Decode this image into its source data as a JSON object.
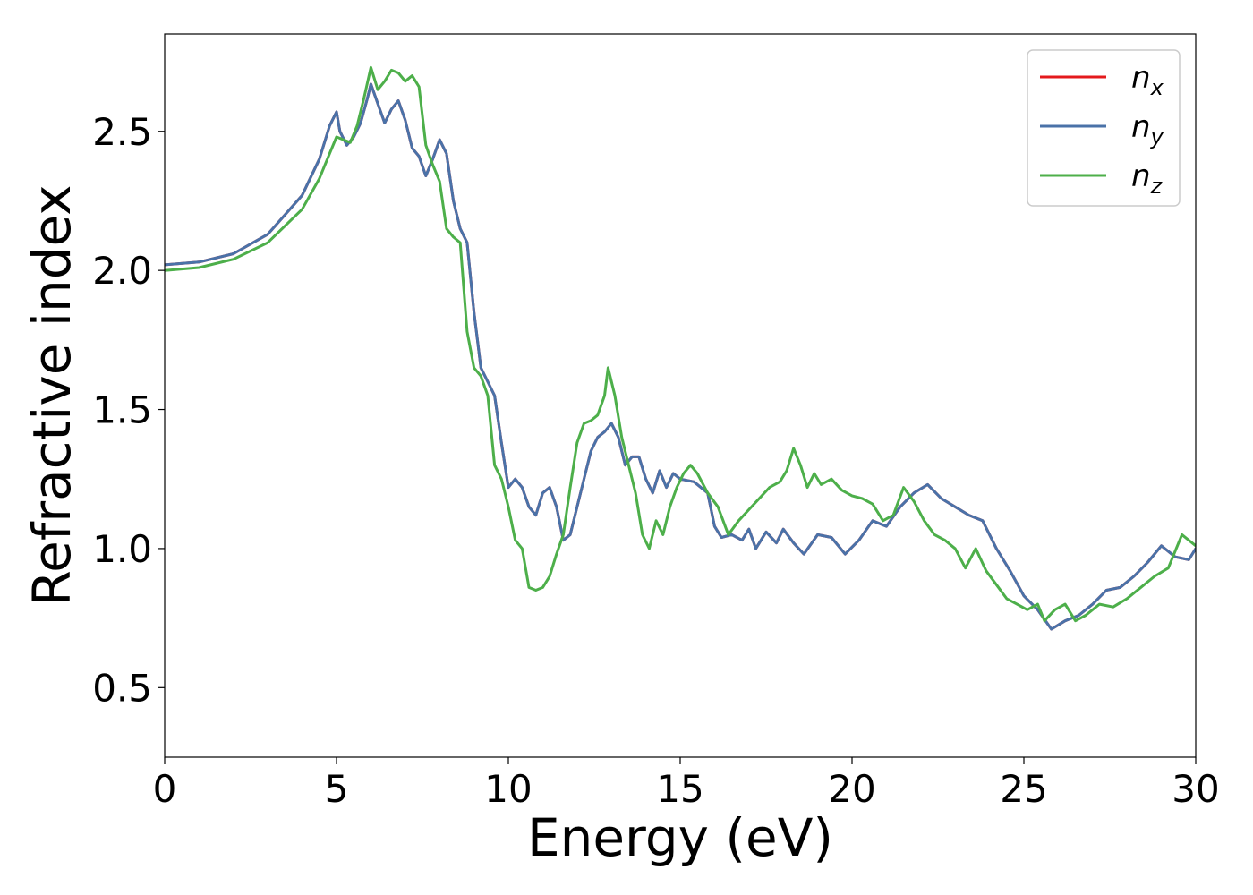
{
  "chart_data": {
    "type": "line",
    "title": "",
    "xlabel": "Energy (eV)",
    "ylabel": "Refractive index",
    "xlim": [
      0,
      30
    ],
    "ylim": [
      0.25,
      2.85
    ],
    "x_ticks": [
      "0",
      "5",
      "10",
      "15",
      "20",
      "25",
      "30"
    ],
    "y_ticks": [
      "0.5",
      "1.0",
      "1.5",
      "2.0",
      "2.5"
    ],
    "grid": false,
    "legend_position": "top-right",
    "series": [
      {
        "name": "n_x",
        "legend_main": "n",
        "legend_sub": "x",
        "color": "#e41a1c",
        "points": [
          [
            0,
            2.02
          ],
          [
            1,
            2.03
          ],
          [
            2,
            2.06
          ],
          [
            3,
            2.13
          ],
          [
            4,
            2.27
          ],
          [
            4.5,
            2.4
          ],
          [
            4.8,
            2.52
          ],
          [
            5.0,
            2.57
          ],
          [
            5.1,
            2.5
          ],
          [
            5.3,
            2.45
          ],
          [
            5.5,
            2.48
          ],
          [
            5.7,
            2.53
          ],
          [
            5.9,
            2.62
          ],
          [
            6.0,
            2.67
          ],
          [
            6.2,
            2.6
          ],
          [
            6.4,
            2.53
          ],
          [
            6.6,
            2.58
          ],
          [
            6.8,
            2.61
          ],
          [
            7.0,
            2.54
          ],
          [
            7.2,
            2.44
          ],
          [
            7.4,
            2.41
          ],
          [
            7.6,
            2.34
          ],
          [
            7.8,
            2.4
          ],
          [
            8.0,
            2.47
          ],
          [
            8.2,
            2.42
          ],
          [
            8.4,
            2.25
          ],
          [
            8.6,
            2.15
          ],
          [
            8.8,
            2.1
          ],
          [
            9.0,
            1.85
          ],
          [
            9.2,
            1.65
          ],
          [
            9.4,
            1.6
          ],
          [
            9.6,
            1.55
          ],
          [
            9.8,
            1.38
          ],
          [
            10.0,
            1.22
          ],
          [
            10.2,
            1.25
          ],
          [
            10.4,
            1.22
          ],
          [
            10.6,
            1.15
          ],
          [
            10.8,
            1.12
          ],
          [
            11.0,
            1.2
          ],
          [
            11.2,
            1.22
          ],
          [
            11.4,
            1.15
          ],
          [
            11.6,
            1.03
          ],
          [
            11.8,
            1.05
          ],
          [
            12.0,
            1.15
          ],
          [
            12.2,
            1.25
          ],
          [
            12.4,
            1.35
          ],
          [
            12.6,
            1.4
          ],
          [
            12.8,
            1.42
          ],
          [
            13.0,
            1.45
          ],
          [
            13.2,
            1.4
          ],
          [
            13.4,
            1.3
          ],
          [
            13.6,
            1.33
          ],
          [
            13.8,
            1.33
          ],
          [
            14.0,
            1.25
          ],
          [
            14.2,
            1.2
          ],
          [
            14.4,
            1.28
          ],
          [
            14.6,
            1.22
          ],
          [
            14.8,
            1.27
          ],
          [
            15.0,
            1.25
          ],
          [
            15.4,
            1.24
          ],
          [
            15.8,
            1.2
          ],
          [
            16.0,
            1.08
          ],
          [
            16.2,
            1.04
          ],
          [
            16.5,
            1.05
          ],
          [
            16.8,
            1.03
          ],
          [
            17.0,
            1.07
          ],
          [
            17.2,
            1.0
          ],
          [
            17.5,
            1.06
          ],
          [
            17.8,
            1.02
          ],
          [
            18.0,
            1.07
          ],
          [
            18.3,
            1.02
          ],
          [
            18.6,
            0.98
          ],
          [
            19.0,
            1.05
          ],
          [
            19.4,
            1.04
          ],
          [
            19.8,
            0.98
          ],
          [
            20.2,
            1.03
          ],
          [
            20.6,
            1.1
          ],
          [
            21.0,
            1.08
          ],
          [
            21.4,
            1.15
          ],
          [
            21.8,
            1.2
          ],
          [
            22.2,
            1.23
          ],
          [
            22.6,
            1.18
          ],
          [
            23.0,
            1.15
          ],
          [
            23.4,
            1.12
          ],
          [
            23.8,
            1.1
          ],
          [
            24.2,
            1.0
          ],
          [
            24.6,
            0.92
          ],
          [
            25.0,
            0.83
          ],
          [
            25.4,
            0.78
          ],
          [
            25.8,
            0.71
          ],
          [
            26.2,
            0.74
          ],
          [
            26.6,
            0.76
          ],
          [
            27.0,
            0.8
          ],
          [
            27.4,
            0.85
          ],
          [
            27.8,
            0.86
          ],
          [
            28.2,
            0.9
          ],
          [
            28.6,
            0.95
          ],
          [
            29.0,
            1.01
          ],
          [
            29.4,
            0.97
          ],
          [
            29.8,
            0.96
          ],
          [
            30.0,
            1.0
          ]
        ]
      },
      {
        "name": "n_y",
        "legend_main": "n",
        "legend_sub": "y",
        "color": "#4a72a8",
        "points": [
          [
            0,
            2.02
          ],
          [
            1,
            2.03
          ],
          [
            2,
            2.06
          ],
          [
            3,
            2.13
          ],
          [
            4,
            2.27
          ],
          [
            4.5,
            2.4
          ],
          [
            4.8,
            2.52
          ],
          [
            5.0,
            2.57
          ],
          [
            5.1,
            2.5
          ],
          [
            5.3,
            2.45
          ],
          [
            5.5,
            2.48
          ],
          [
            5.7,
            2.53
          ],
          [
            5.9,
            2.62
          ],
          [
            6.0,
            2.67
          ],
          [
            6.2,
            2.6
          ],
          [
            6.4,
            2.53
          ],
          [
            6.6,
            2.58
          ],
          [
            6.8,
            2.61
          ],
          [
            7.0,
            2.54
          ],
          [
            7.2,
            2.44
          ],
          [
            7.4,
            2.41
          ],
          [
            7.6,
            2.34
          ],
          [
            7.8,
            2.4
          ],
          [
            8.0,
            2.47
          ],
          [
            8.2,
            2.42
          ],
          [
            8.4,
            2.25
          ],
          [
            8.6,
            2.15
          ],
          [
            8.8,
            2.1
          ],
          [
            9.0,
            1.85
          ],
          [
            9.2,
            1.65
          ],
          [
            9.4,
            1.6
          ],
          [
            9.6,
            1.55
          ],
          [
            9.8,
            1.38
          ],
          [
            10.0,
            1.22
          ],
          [
            10.2,
            1.25
          ],
          [
            10.4,
            1.22
          ],
          [
            10.6,
            1.15
          ],
          [
            10.8,
            1.12
          ],
          [
            11.0,
            1.2
          ],
          [
            11.2,
            1.22
          ],
          [
            11.4,
            1.15
          ],
          [
            11.6,
            1.03
          ],
          [
            11.8,
            1.05
          ],
          [
            12.0,
            1.15
          ],
          [
            12.2,
            1.25
          ],
          [
            12.4,
            1.35
          ],
          [
            12.6,
            1.4
          ],
          [
            12.8,
            1.42
          ],
          [
            13.0,
            1.45
          ],
          [
            13.2,
            1.4
          ],
          [
            13.4,
            1.3
          ],
          [
            13.6,
            1.33
          ],
          [
            13.8,
            1.33
          ],
          [
            14.0,
            1.25
          ],
          [
            14.2,
            1.2
          ],
          [
            14.4,
            1.28
          ],
          [
            14.6,
            1.22
          ],
          [
            14.8,
            1.27
          ],
          [
            15.0,
            1.25
          ],
          [
            15.4,
            1.24
          ],
          [
            15.8,
            1.2
          ],
          [
            16.0,
            1.08
          ],
          [
            16.2,
            1.04
          ],
          [
            16.5,
            1.05
          ],
          [
            16.8,
            1.03
          ],
          [
            17.0,
            1.07
          ],
          [
            17.2,
            1.0
          ],
          [
            17.5,
            1.06
          ],
          [
            17.8,
            1.02
          ],
          [
            18.0,
            1.07
          ],
          [
            18.3,
            1.02
          ],
          [
            18.6,
            0.98
          ],
          [
            19.0,
            1.05
          ],
          [
            19.4,
            1.04
          ],
          [
            19.8,
            0.98
          ],
          [
            20.2,
            1.03
          ],
          [
            20.6,
            1.1
          ],
          [
            21.0,
            1.08
          ],
          [
            21.4,
            1.15
          ],
          [
            21.8,
            1.2
          ],
          [
            22.2,
            1.23
          ],
          [
            22.6,
            1.18
          ],
          [
            23.0,
            1.15
          ],
          [
            23.4,
            1.12
          ],
          [
            23.8,
            1.1
          ],
          [
            24.2,
            1.0
          ],
          [
            24.6,
            0.92
          ],
          [
            25.0,
            0.83
          ],
          [
            25.4,
            0.78
          ],
          [
            25.8,
            0.71
          ],
          [
            26.2,
            0.74
          ],
          [
            26.6,
            0.76
          ],
          [
            27.0,
            0.8
          ],
          [
            27.4,
            0.85
          ],
          [
            27.8,
            0.86
          ],
          [
            28.2,
            0.9
          ],
          [
            28.6,
            0.95
          ],
          [
            29.0,
            1.01
          ],
          [
            29.4,
            0.97
          ],
          [
            29.8,
            0.96
          ],
          [
            30.0,
            1.0
          ]
        ]
      },
      {
        "name": "n_z",
        "legend_main": "n",
        "legend_sub": "z",
        "color": "#4daf4a",
        "points": [
          [
            0,
            2.0
          ],
          [
            1,
            2.01
          ],
          [
            2,
            2.04
          ],
          [
            3,
            2.1
          ],
          [
            4,
            2.22
          ],
          [
            4.5,
            2.33
          ],
          [
            4.8,
            2.42
          ],
          [
            5.0,
            2.48
          ],
          [
            5.2,
            2.47
          ],
          [
            5.4,
            2.46
          ],
          [
            5.6,
            2.52
          ],
          [
            5.8,
            2.62
          ],
          [
            6.0,
            2.73
          ],
          [
            6.2,
            2.65
          ],
          [
            6.4,
            2.68
          ],
          [
            6.6,
            2.72
          ],
          [
            6.8,
            2.71
          ],
          [
            7.0,
            2.68
          ],
          [
            7.2,
            2.7
          ],
          [
            7.4,
            2.66
          ],
          [
            7.6,
            2.45
          ],
          [
            7.8,
            2.38
          ],
          [
            8.0,
            2.32
          ],
          [
            8.2,
            2.15
          ],
          [
            8.4,
            2.12
          ],
          [
            8.6,
            2.1
          ],
          [
            8.8,
            1.78
          ],
          [
            9.0,
            1.65
          ],
          [
            9.2,
            1.62
          ],
          [
            9.4,
            1.55
          ],
          [
            9.6,
            1.3
          ],
          [
            9.8,
            1.25
          ],
          [
            10.0,
            1.15
          ],
          [
            10.2,
            1.03
          ],
          [
            10.4,
            1.0
          ],
          [
            10.6,
            0.86
          ],
          [
            10.8,
            0.85
          ],
          [
            11.0,
            0.86
          ],
          [
            11.2,
            0.9
          ],
          [
            11.4,
            0.98
          ],
          [
            11.6,
            1.05
          ],
          [
            11.8,
            1.22
          ],
          [
            12.0,
            1.38
          ],
          [
            12.2,
            1.45
          ],
          [
            12.4,
            1.46
          ],
          [
            12.6,
            1.48
          ],
          [
            12.8,
            1.55
          ],
          [
            12.9,
            1.65
          ],
          [
            13.1,
            1.55
          ],
          [
            13.3,
            1.4
          ],
          [
            13.5,
            1.3
          ],
          [
            13.7,
            1.2
          ],
          [
            13.9,
            1.05
          ],
          [
            14.1,
            1.0
          ],
          [
            14.3,
            1.1
          ],
          [
            14.5,
            1.05
          ],
          [
            14.7,
            1.15
          ],
          [
            14.9,
            1.22
          ],
          [
            15.1,
            1.27
          ],
          [
            15.3,
            1.3
          ],
          [
            15.5,
            1.27
          ],
          [
            15.8,
            1.2
          ],
          [
            16.1,
            1.15
          ],
          [
            16.4,
            1.05
          ],
          [
            16.7,
            1.1
          ],
          [
            17.0,
            1.14
          ],
          [
            17.3,
            1.18
          ],
          [
            17.6,
            1.22
          ],
          [
            17.9,
            1.24
          ],
          [
            18.1,
            1.28
          ],
          [
            18.3,
            1.36
          ],
          [
            18.5,
            1.3
          ],
          [
            18.7,
            1.22
          ],
          [
            18.9,
            1.27
          ],
          [
            19.1,
            1.23
          ],
          [
            19.4,
            1.25
          ],
          [
            19.7,
            1.21
          ],
          [
            20.0,
            1.19
          ],
          [
            20.3,
            1.18
          ],
          [
            20.6,
            1.16
          ],
          [
            20.9,
            1.1
          ],
          [
            21.2,
            1.12
          ],
          [
            21.5,
            1.22
          ],
          [
            21.8,
            1.17
          ],
          [
            22.1,
            1.1
          ],
          [
            22.4,
            1.05
          ],
          [
            22.7,
            1.03
          ],
          [
            23.0,
            1.0
          ],
          [
            23.3,
            0.93
          ],
          [
            23.6,
            1.0
          ],
          [
            23.9,
            0.92
          ],
          [
            24.2,
            0.87
          ],
          [
            24.5,
            0.82
          ],
          [
            24.8,
            0.8
          ],
          [
            25.1,
            0.78
          ],
          [
            25.4,
            0.8
          ],
          [
            25.6,
            0.74
          ],
          [
            25.9,
            0.78
          ],
          [
            26.2,
            0.8
          ],
          [
            26.5,
            0.74
          ],
          [
            26.8,
            0.76
          ],
          [
            27.2,
            0.8
          ],
          [
            27.6,
            0.79
          ],
          [
            28.0,
            0.82
          ],
          [
            28.4,
            0.86
          ],
          [
            28.8,
            0.9
          ],
          [
            29.2,
            0.93
          ],
          [
            29.6,
            1.05
          ],
          [
            30.0,
            1.01
          ]
        ]
      }
    ]
  }
}
